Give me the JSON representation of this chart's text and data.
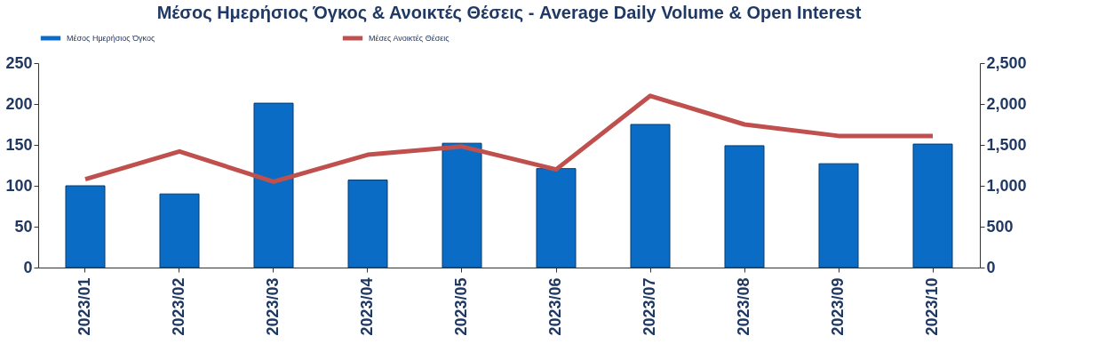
{
  "chart_data": {
    "type": "bar",
    "title": "Μέσος Ημερήσιος Όγκος & Ανοικτές Θέσεις - Average Daily Volume & Open Interest",
    "categories": [
      "2023/01",
      "2023/02",
      "2023/03",
      "2023/04",
      "2023/05",
      "2023/06",
      "2023/07",
      "2023/08",
      "2023/09",
      "2023/10"
    ],
    "series": [
      {
        "name": "Μέσος Ημερήσιος Όγκος",
        "color": "#0a6cc4",
        "values": [
          100,
          90,
          201,
          107,
          152,
          121,
          175,
          149,
          127,
          151
        ]
      },
      {
        "name": "Μέσες Ανοικτές Θέσεις",
        "type": "line",
        "axis": "y2",
        "color": "#c0504d",
        "values": [
          1080,
          1420,
          1050,
          1380,
          1480,
          1200,
          2100,
          1750,
          1610,
          1610
        ]
      }
    ],
    "ylim": [
      0,
      250
    ],
    "yticks": [
      0,
      50,
      100,
      150,
      200,
      250
    ],
    "y2lim": [
      0,
      2500
    ],
    "y2ticks": [
      0,
      500,
      {
        "value": 1000,
        "label": "1,000"
      },
      {
        "value": 1500,
        "label": "1,500"
      },
      {
        "value": 2000,
        "label": "2,000"
      },
      {
        "value": 2500,
        "label": "2,500"
      }
    ],
    "grid": false,
    "legend": "top",
    "marker": "none",
    "line_style": "solid"
  }
}
